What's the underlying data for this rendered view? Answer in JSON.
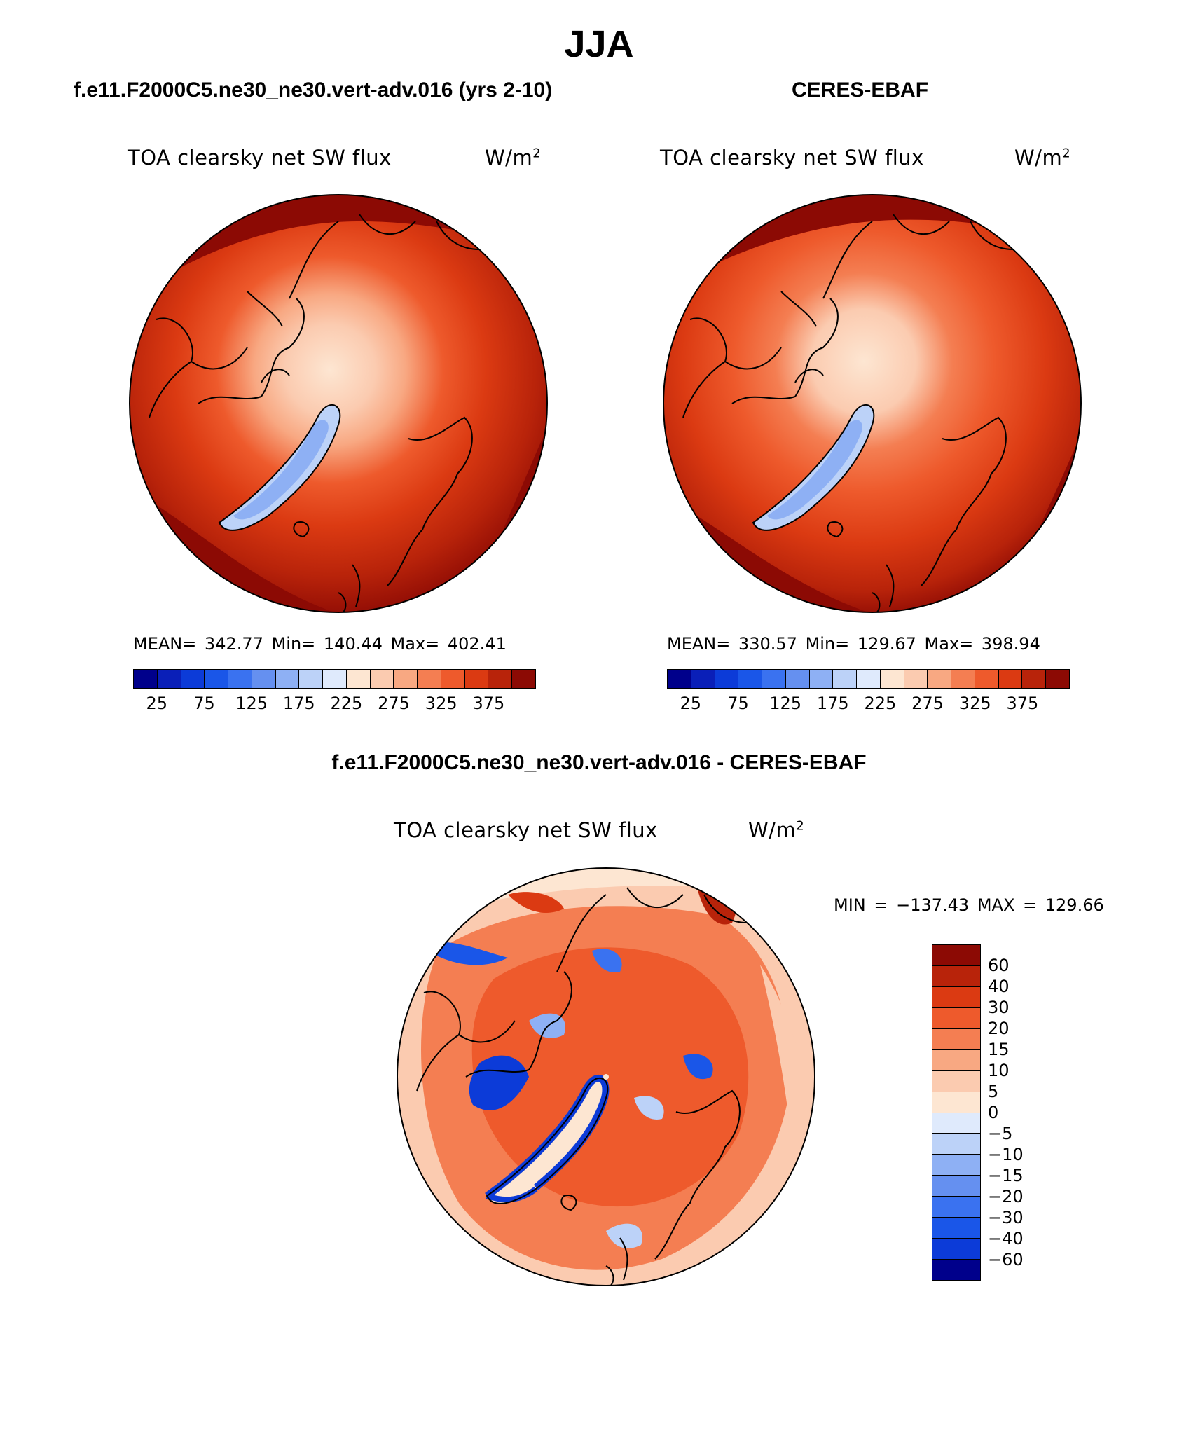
{
  "title": "JJA",
  "panel_left": {
    "case_label": "f.e11.F2000C5.ne30_ne30.vert-adv.016 (yrs 2-10)",
    "var_label": "TOA clearsky net SW flux",
    "units_base": "W/m",
    "units_exp": "2",
    "stats": "MEAN= 342.77   Min= 140.44   Max= 402.41",
    "mean": 342.77,
    "min": 140.44,
    "max": 402.41
  },
  "panel_right": {
    "case_label": "CERES-EBAF",
    "var_label": "TOA clearsky net SW flux",
    "units_base": "W/m",
    "units_exp": "2",
    "stats": "MEAN= 330.57   Min= 129.67   Max= 398.94",
    "mean": 330.57,
    "min": 129.67,
    "max": 398.94
  },
  "panel_diff": {
    "case_label": "f.e11.F2000C5.ne30_ne30.vert-adv.016 - CERES-EBAF",
    "var_label": "TOA clearsky net SW flux",
    "units_base": "W/m",
    "units_exp": "2",
    "stats": "MIN = −137.43 MAX = 129.66",
    "min": -137.43,
    "max": 129.66
  },
  "colorbar_abs": {
    "ticks": [
      "25",
      "75",
      "125",
      "175",
      "225",
      "275",
      "325",
      "375"
    ],
    "colors": [
      "#00008b",
      "#0a1fb8",
      "#0c3bd8",
      "#1a56e8",
      "#3a72f0",
      "#6590f0",
      "#8eb0f4",
      "#bcd2f8",
      "#dfeafc",
      "#fde6d2",
      "#fbcbb0",
      "#f8a882",
      "#f47e52",
      "#ee5a2c",
      "#db3a12",
      "#b8230a",
      "#8c0a04"
    ]
  },
  "colorbar_diff": {
    "labels": [
      "60",
      "40",
      "30",
      "20",
      "15",
      "10",
      "5",
      "0",
      "−5",
      "−10",
      "−15",
      "−20",
      "−30",
      "−40",
      "−60"
    ],
    "colors": [
      "#8c0a04",
      "#b8230a",
      "#db3a12",
      "#ee5a2c",
      "#f47e52",
      "#f8a882",
      "#fbcbb0",
      "#fde6d2",
      "#dfeafc",
      "#bcd2f8",
      "#8eb0f4",
      "#6590f0",
      "#3a72f0",
      "#1a56e8",
      "#0c3bd8",
      "#00008b"
    ]
  },
  "map_colors": {
    "ocean_far": "#8c0a04",
    "ocean_mid": "#b8230a",
    "ocean_near": "#db3a12",
    "arctic_a": "#ee5a2c",
    "arctic_b": "#f8a882",
    "arctic_c": "#fde6d2",
    "greenland": "#8eb0f4",
    "greenland_edge": "#bcd2f8",
    "diff_bg": "#fde6d2",
    "diff_pos": "#ee5a2c",
    "diff_pos2": "#f47e52",
    "diff_neg": "#1a56e8",
    "diff_neg2": "#8eb0f4"
  }
}
